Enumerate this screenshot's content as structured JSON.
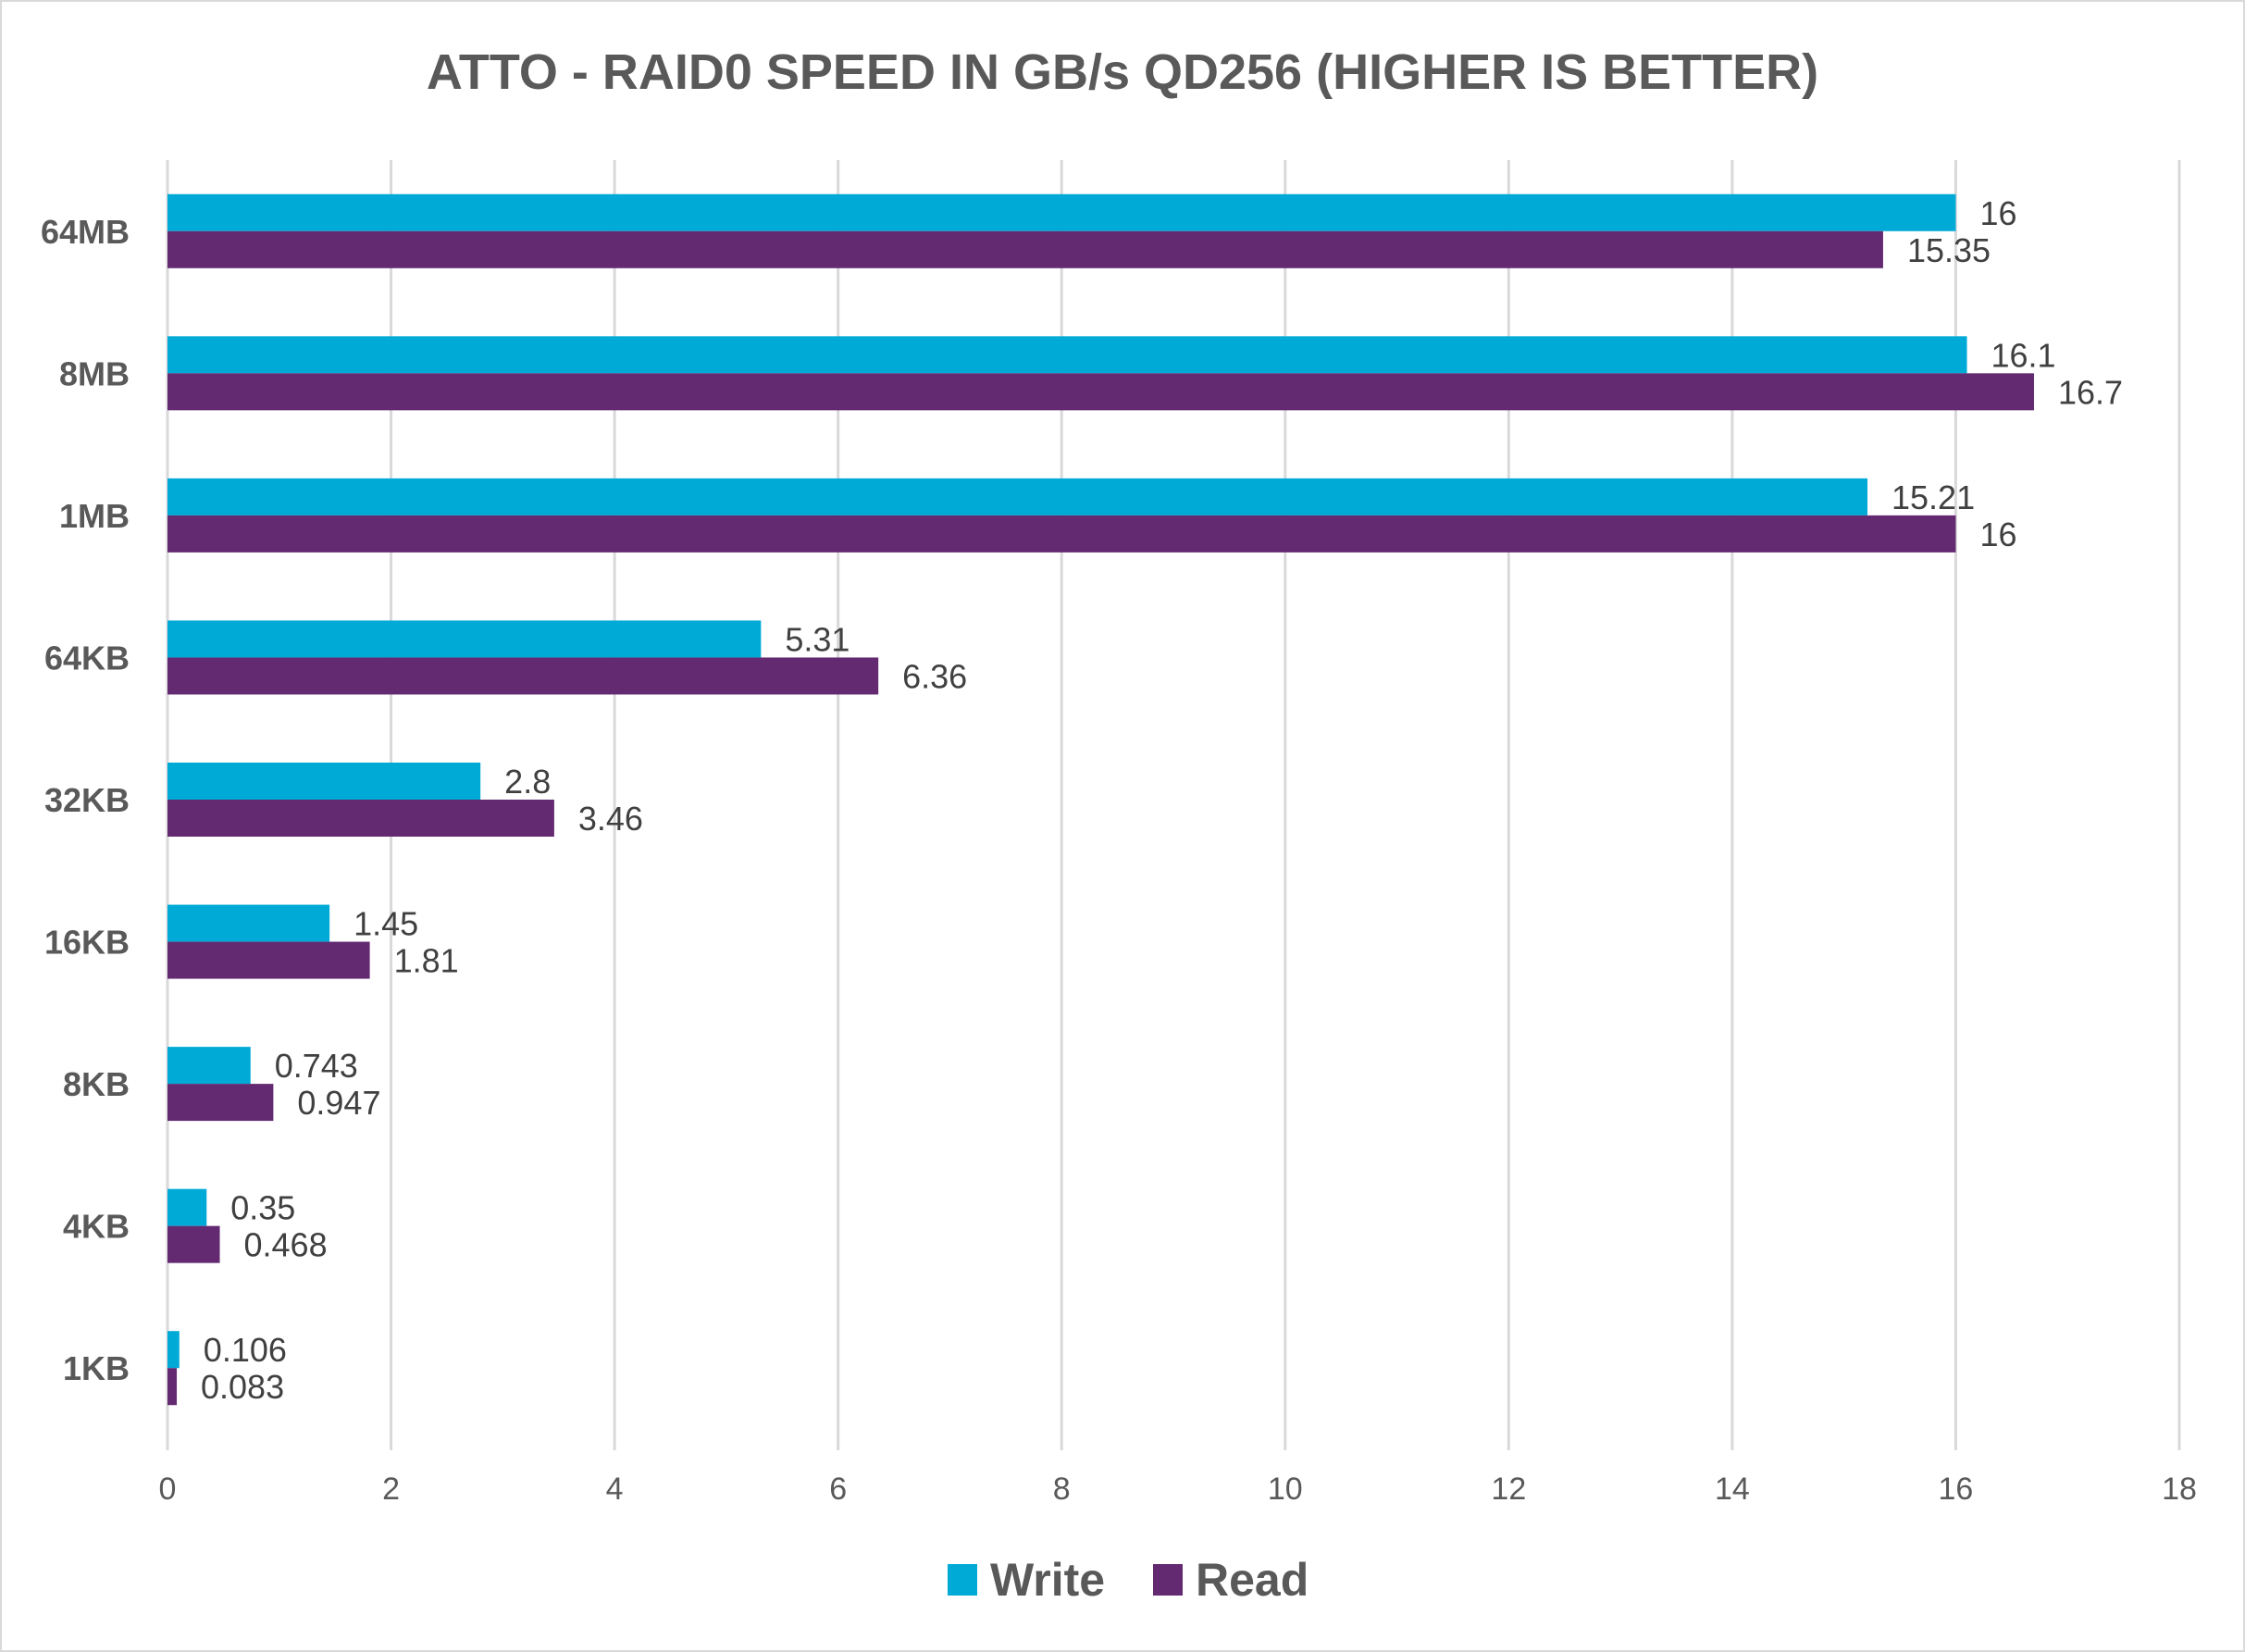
{
  "chart_data": {
    "type": "bar",
    "orientation": "horizontal",
    "title": "ATTO - RAID0 SPEED IN GB/s QD256 (HIGHER IS BETTER)",
    "xlabel": "",
    "ylabel": "",
    "categories": [
      "64MB",
      "8MB",
      "1MB",
      "64KB",
      "32KB",
      "16KB",
      "8KB",
      "4KB",
      "1KB"
    ],
    "series": [
      {
        "name": "Write",
        "color": "#00AAD7",
        "values": [
          16,
          16.1,
          15.21,
          5.31,
          2.8,
          1.45,
          0.743,
          0.35,
          0.106
        ],
        "labels": [
          "16",
          "16.1",
          "15.21",
          "5.31",
          "2.8",
          "1.45",
          "0.743",
          "0.35",
          "0.106"
        ]
      },
      {
        "name": "Read",
        "color": "#632A72",
        "values": [
          15.35,
          16.7,
          16,
          6.36,
          3.46,
          1.81,
          0.947,
          0.468,
          0.083
        ],
        "labels": [
          "15.35",
          "16.7",
          "16",
          "6.36",
          "3.46",
          "1.81",
          "0.947",
          "0.468",
          "0.083"
        ]
      }
    ],
    "xlim": [
      0,
      18
    ],
    "xticks": [
      "0",
      "2",
      "4",
      "6",
      "8",
      "10",
      "12",
      "14",
      "16",
      "18"
    ],
    "grid": true,
    "legend": "bottom"
  }
}
